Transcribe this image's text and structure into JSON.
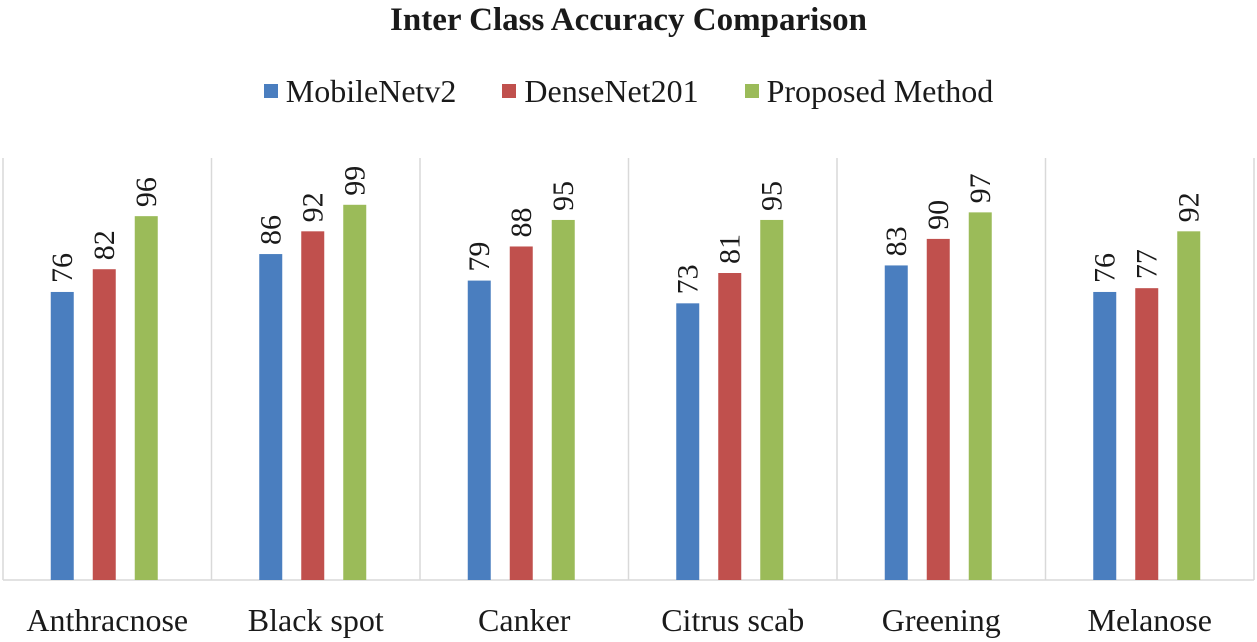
{
  "chart_data": {
    "type": "bar",
    "title": "Inter Class Accuracy Comparison",
    "xlabel": "",
    "ylabel": "",
    "ylim": [
      0,
      110
    ],
    "grid": false,
    "legend_position": "top",
    "categories": [
      "Anthracnose",
      "Black spot",
      "Canker",
      "Citrus scab",
      "Greening",
      "Melanose"
    ],
    "series": [
      {
        "name": "MobileNetv2",
        "color": "#4a7ebf",
        "values": [
          76,
          86,
          79,
          73,
          83,
          76
        ]
      },
      {
        "name": "DenseNet201",
        "color": "#c0504d",
        "values": [
          82,
          92,
          88,
          81,
          90,
          77
        ]
      },
      {
        "name": "Proposed Method",
        "color": "#9bbb59",
        "values": [
          96,
          99,
          95,
          95,
          97,
          92
        ]
      }
    ]
  }
}
